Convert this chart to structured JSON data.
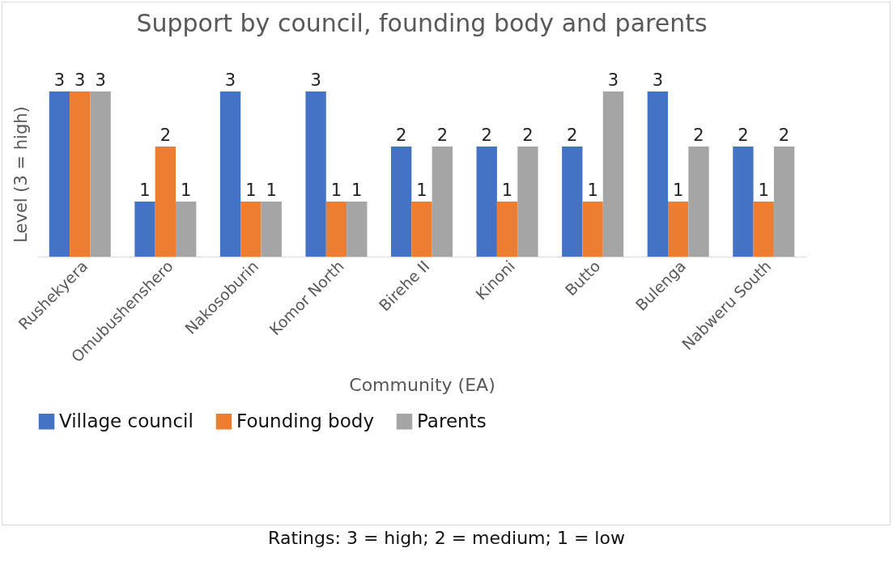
{
  "chart_data": {
    "type": "bar",
    "title": "Support by council, founding body and parents",
    "xlabel": "Community (EA)",
    "ylabel": "Level (3 = high)",
    "categories": [
      "Rushekyera",
      "Omubushenshero",
      "Nakosoburin",
      "Komor North",
      "Birehe II",
      "Kinoni",
      "Butto",
      "Bulenga",
      "Nabweru South"
    ],
    "series": [
      {
        "name": "Village council",
        "color": "#4472c4",
        "values": [
          3,
          1,
          3,
          3,
          2,
          2,
          2,
          3,
          2
        ]
      },
      {
        "name": "Founding body",
        "color": "#ed7d31",
        "values": [
          3,
          2,
          1,
          1,
          1,
          1,
          1,
          1,
          1
        ]
      },
      {
        "name": "Parents",
        "color": "#a5a5a5",
        "values": [
          3,
          1,
          1,
          1,
          2,
          2,
          3,
          2,
          2
        ]
      }
    ],
    "data_labels": true,
    "legend": "bottom",
    "grid": false,
    "annotations": [
      "Ratings: 3 = high; 2 = medium; 1 = low"
    ]
  }
}
